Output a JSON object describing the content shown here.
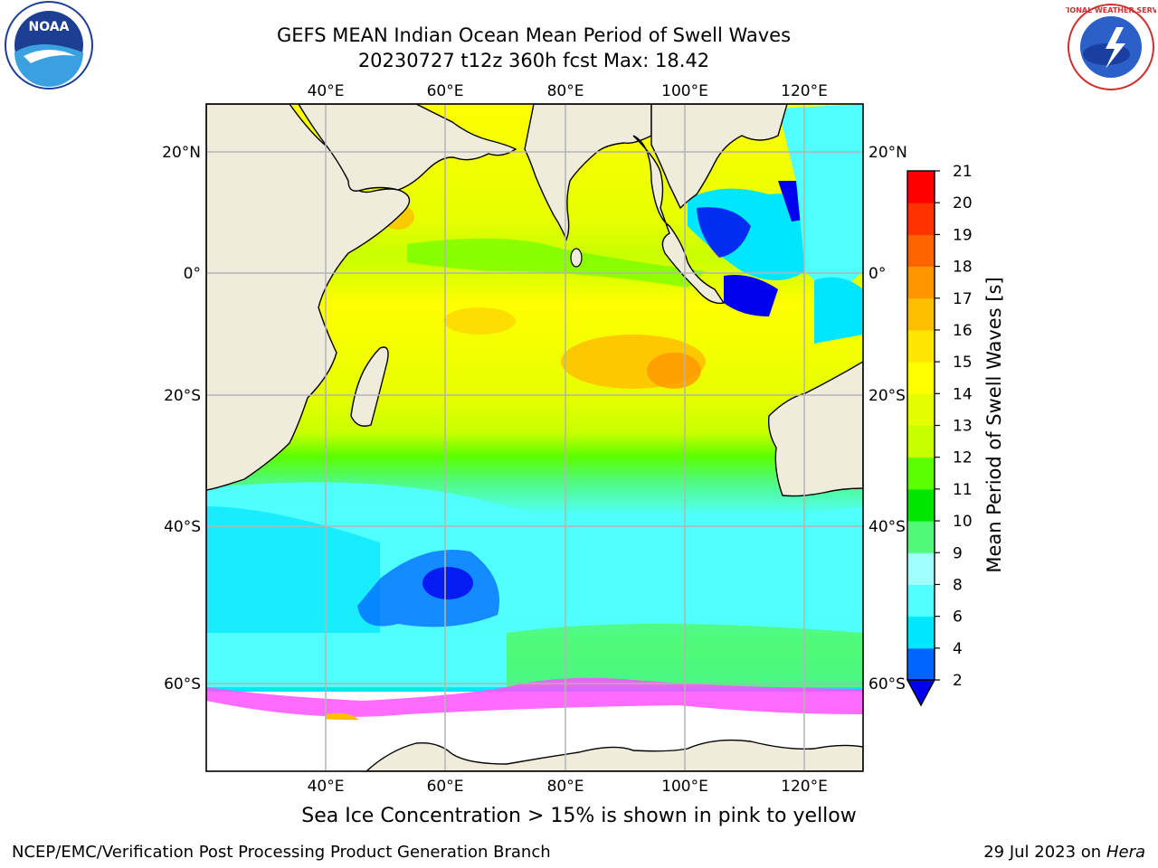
{
  "header": {
    "title_line1": "GEFS MEAN Indian Ocean Mean Period of Swell Waves",
    "title_line2": "20230727 t12z 360h fcst   Max: 18.42"
  },
  "map": {
    "lon_ticks_top": [
      "40°E",
      "60°E",
      "80°E",
      "100°E",
      "120°E"
    ],
    "lon_ticks_bottom": [
      "40°E",
      "60°E",
      "80°E",
      "100°E",
      "120°E"
    ],
    "lat_ticks_left": [
      "20°N",
      "0°",
      "20°S",
      "40°S",
      "60°S"
    ],
    "lat_ticks_right": [
      "20°N",
      "0°",
      "20°S",
      "40°S",
      "60°S"
    ],
    "land_color": "#efecdc",
    "grid_color": "#b4b4b4"
  },
  "colorbar": {
    "label": "Mean Period of Swell Waves [s]",
    "ticks": [
      "2",
      "4",
      "6",
      "8",
      "9",
      "10",
      "11",
      "12",
      "13",
      "14",
      "15",
      "16",
      "17",
      "18",
      "19",
      "20",
      "21"
    ],
    "colors": [
      "#0064ff",
      "#00e6ff",
      "#50ffff",
      "#a0ffff",
      "#50fa78",
      "#00e600",
      "#5aff00",
      "#c8ff00",
      "#e6ff00",
      "#ffff00",
      "#ffe600",
      "#ffbe00",
      "#ff9600",
      "#ff6400",
      "#ff3200",
      "#ff0000"
    ],
    "extend_color": "#0000ee"
  },
  "footer": {
    "sea_ice_note": "Sea Ice Concentration > 15% is shown in pink to yellow",
    "credit": "NCEP/EMC/Verification Post Processing Product Generation Branch",
    "date": "29 Jul 2023 on",
    "host": "Hera"
  },
  "logos": {
    "noaa_text": "NOAA",
    "nws_text": "NATIONAL WEATHER SERVICE"
  }
}
